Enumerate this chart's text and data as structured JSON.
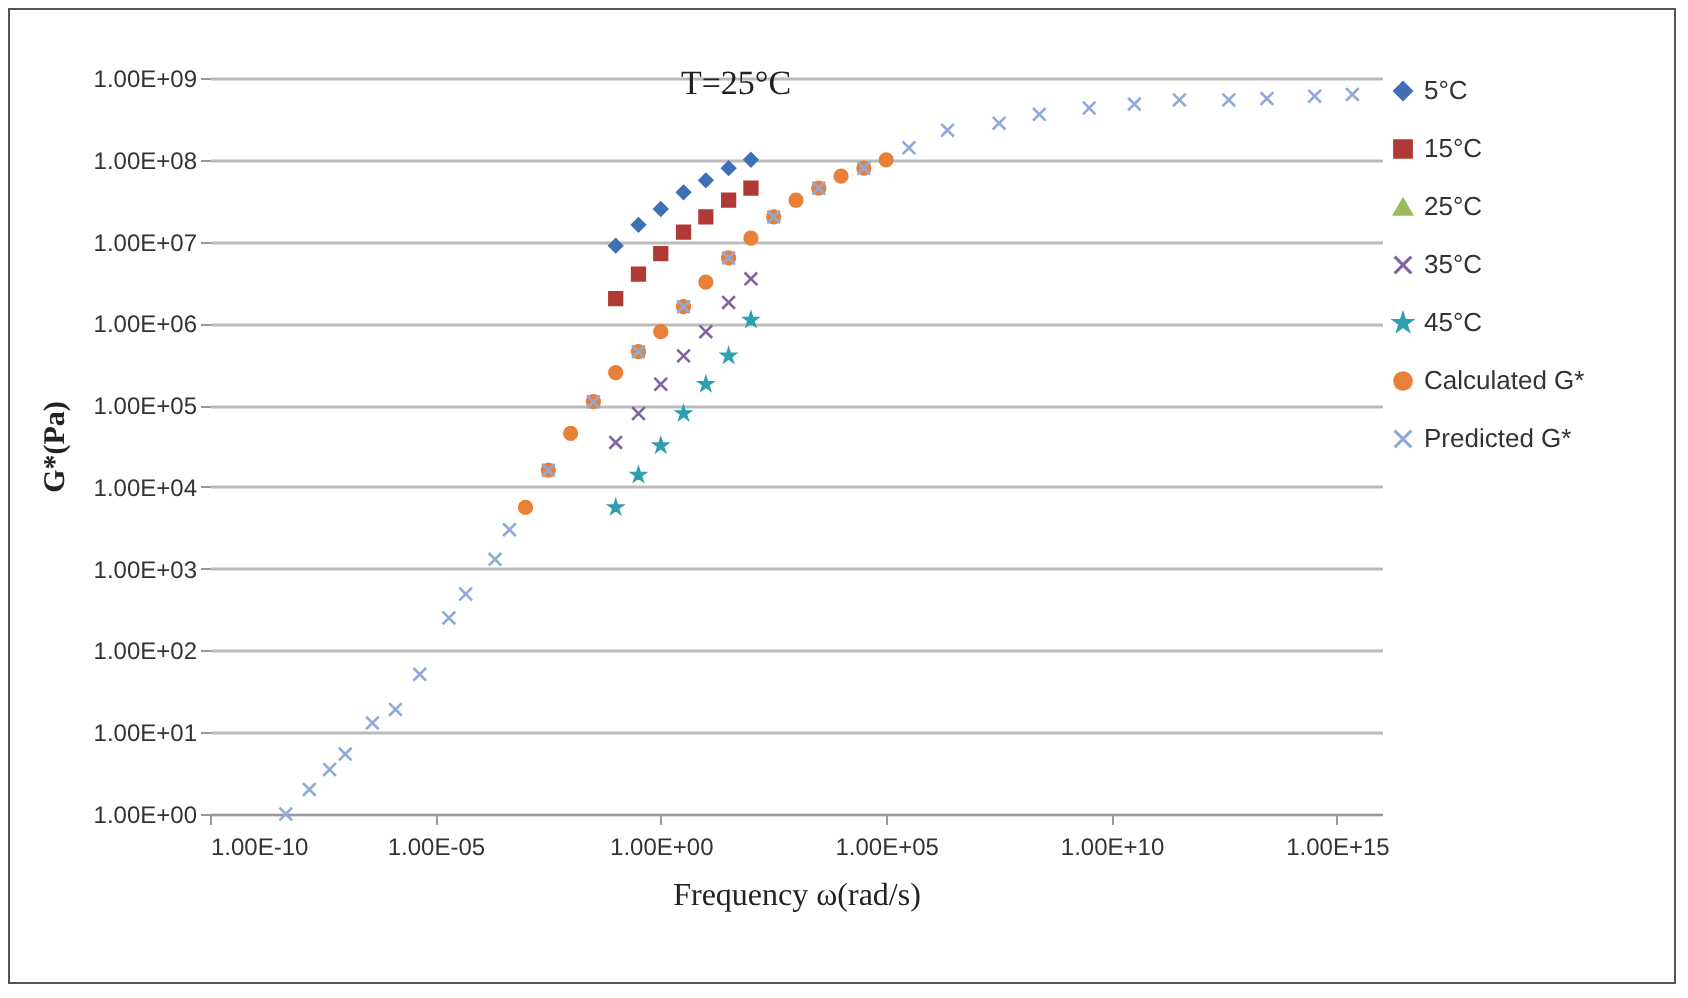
{
  "chart_data": {
    "type": "scatter",
    "title": "T=25°C",
    "xlabel": "Frequency ω(rad/s)",
    "ylabel": "G*(Pa)",
    "log": "xy",
    "grid": "y",
    "legend": "right",
    "xlim": [
      1e-10,
      1e+16
    ],
    "xticks": [
      {
        "value": 1e-10,
        "label": "1.00E-10"
      },
      {
        "value": 1e-05,
        "label": "1.00E-05"
      },
      {
        "value": 1,
        "label": "1.00E+00"
      },
      {
        "value": 100000.0,
        "label": "1.00E+05"
      },
      {
        "value": 10000000000.0,
        "label": "1.00E+10"
      },
      {
        "value": 1000000000000000.0,
        "label": "1.00E+15"
      }
    ],
    "ylim": [
      1,
      1000000000.0
    ],
    "yticks": [
      {
        "value": 1,
        "label": "1.00E+00"
      },
      {
        "value": 10,
        "label": "1.00E+01"
      },
      {
        "value": 100,
        "label": "1.00E+02"
      },
      {
        "value": 1000,
        "label": "1.00E+03"
      },
      {
        "value": 10000.0,
        "label": "1.00E+04"
      },
      {
        "value": 100000.0,
        "label": "1.00E+05"
      },
      {
        "value": 1000000.0,
        "label": "1.00E+06"
      },
      {
        "value": 10000000.0,
        "label": "1.00E+07"
      },
      {
        "value": 100000000.0,
        "label": "1.00E+08"
      },
      {
        "value": 1000000000.0,
        "label": "1.00E+09"
      }
    ],
    "series": [
      {
        "name": "5°C",
        "color": "#3f6fb5",
        "marker": "diamond",
        "x": [
          0.1,
          0.32,
          1,
          3.2,
          10,
          32,
          100
        ],
        "values": [
          8900000.0,
          16000000.0,
          25000000.0,
          40000000.0,
          56000000.0,
          79000000.0,
          100000000.0
        ]
      },
      {
        "name": "15°C",
        "color": "#b03a36",
        "marker": "square",
        "x": [
          0.1,
          0.32,
          1,
          3.2,
          10,
          32,
          100
        ],
        "values": [
          2000000.0,
          4000000.0,
          7100000.0,
          13000000.0,
          20000000.0,
          32000000.0,
          45000000.0
        ]
      },
      {
        "name": "25°C",
        "color": "#9bbb59",
        "marker": "triangle",
        "values": [
          null,
          null,
          null,
          null,
          null,
          null,
          null
        ]
      },
      {
        "name": "35°C",
        "color": "#8064a2",
        "marker": "cross",
        "x": [
          0.1,
          0.32,
          1,
          3.2,
          10,
          32,
          100
        ],
        "values": [
          35000.0,
          79000.0,
          180000.0,
          400000.0,
          790000.0,
          1800000.0,
          3500000.0
        ]
      },
      {
        "name": "45°C",
        "color": "#2f9fb0",
        "marker": "star",
        "x": [
          0.1,
          0.32,
          1,
          3.2,
          10,
          32,
          100
        ],
        "values": [
          5600.0,
          14000.0,
          32000.0,
          79000.0,
          180000.0,
          400000.0,
          1100000.0
        ]
      },
      {
        "name": "Calculated G*",
        "color": "#e8803a",
        "marker": "circle",
        "x": [
          0.001,
          0.0032,
          0.01,
          0.032,
          0.1,
          0.32,
          1,
          3.2,
          10,
          32,
          100,
          320,
          1000,
          3200,
          10000.0,
          32000.0,
          100000.0
        ],
        "values": [
          5600.0,
          16000.0,
          45000.0,
          110000.0,
          250000.0,
          450000.0,
          790000.0,
          1600000.0,
          3200000.0,
          6300000.0,
          11000000.0,
          20000000.0,
          32000000.0,
          45000000.0,
          63000000.0,
          79000000.0,
          100000000.0
        ]
      },
      {
        "name": "Predicted G*",
        "color": "#8eaadb",
        "marker": "cross",
        "x": [
          4.8e-09,
          1.6e-08,
          4.5e-08,
          1e-07,
          4e-07,
          1.3e-06,
          4.5e-06,
          2e-05,
          4.7e-05,
          0.00021,
          0.00044,
          0.0032,
          0.032,
          0.32,
          3.2,
          32,
          320,
          3200,
          32000.0,
          320000.0,
          2300000.0,
          32000000.0,
          250000000.0,
          3200000000.0,
          32000000000.0,
          320000000000.0,
          4000000000000.0,
          28000000000000.0,
          320000000000000.0,
          2200000000000000.0
        ],
        "values": [
          1,
          2,
          3.5,
          5.4,
          13,
          19,
          51,
          250,
          490,
          1300,
          3000,
          16000.0,
          110000.0,
          450000.0,
          1600000.0,
          6300000.0,
          20000000.0,
          45000000.0,
          79000000.0,
          140000000.0,
          230000000.0,
          280000000.0,
          360000000.0,
          430000000.0,
          480000000.0,
          540000000.0,
          540000000.0,
          560000000.0,
          600000000.0,
          630000000.0
        ]
      }
    ]
  }
}
